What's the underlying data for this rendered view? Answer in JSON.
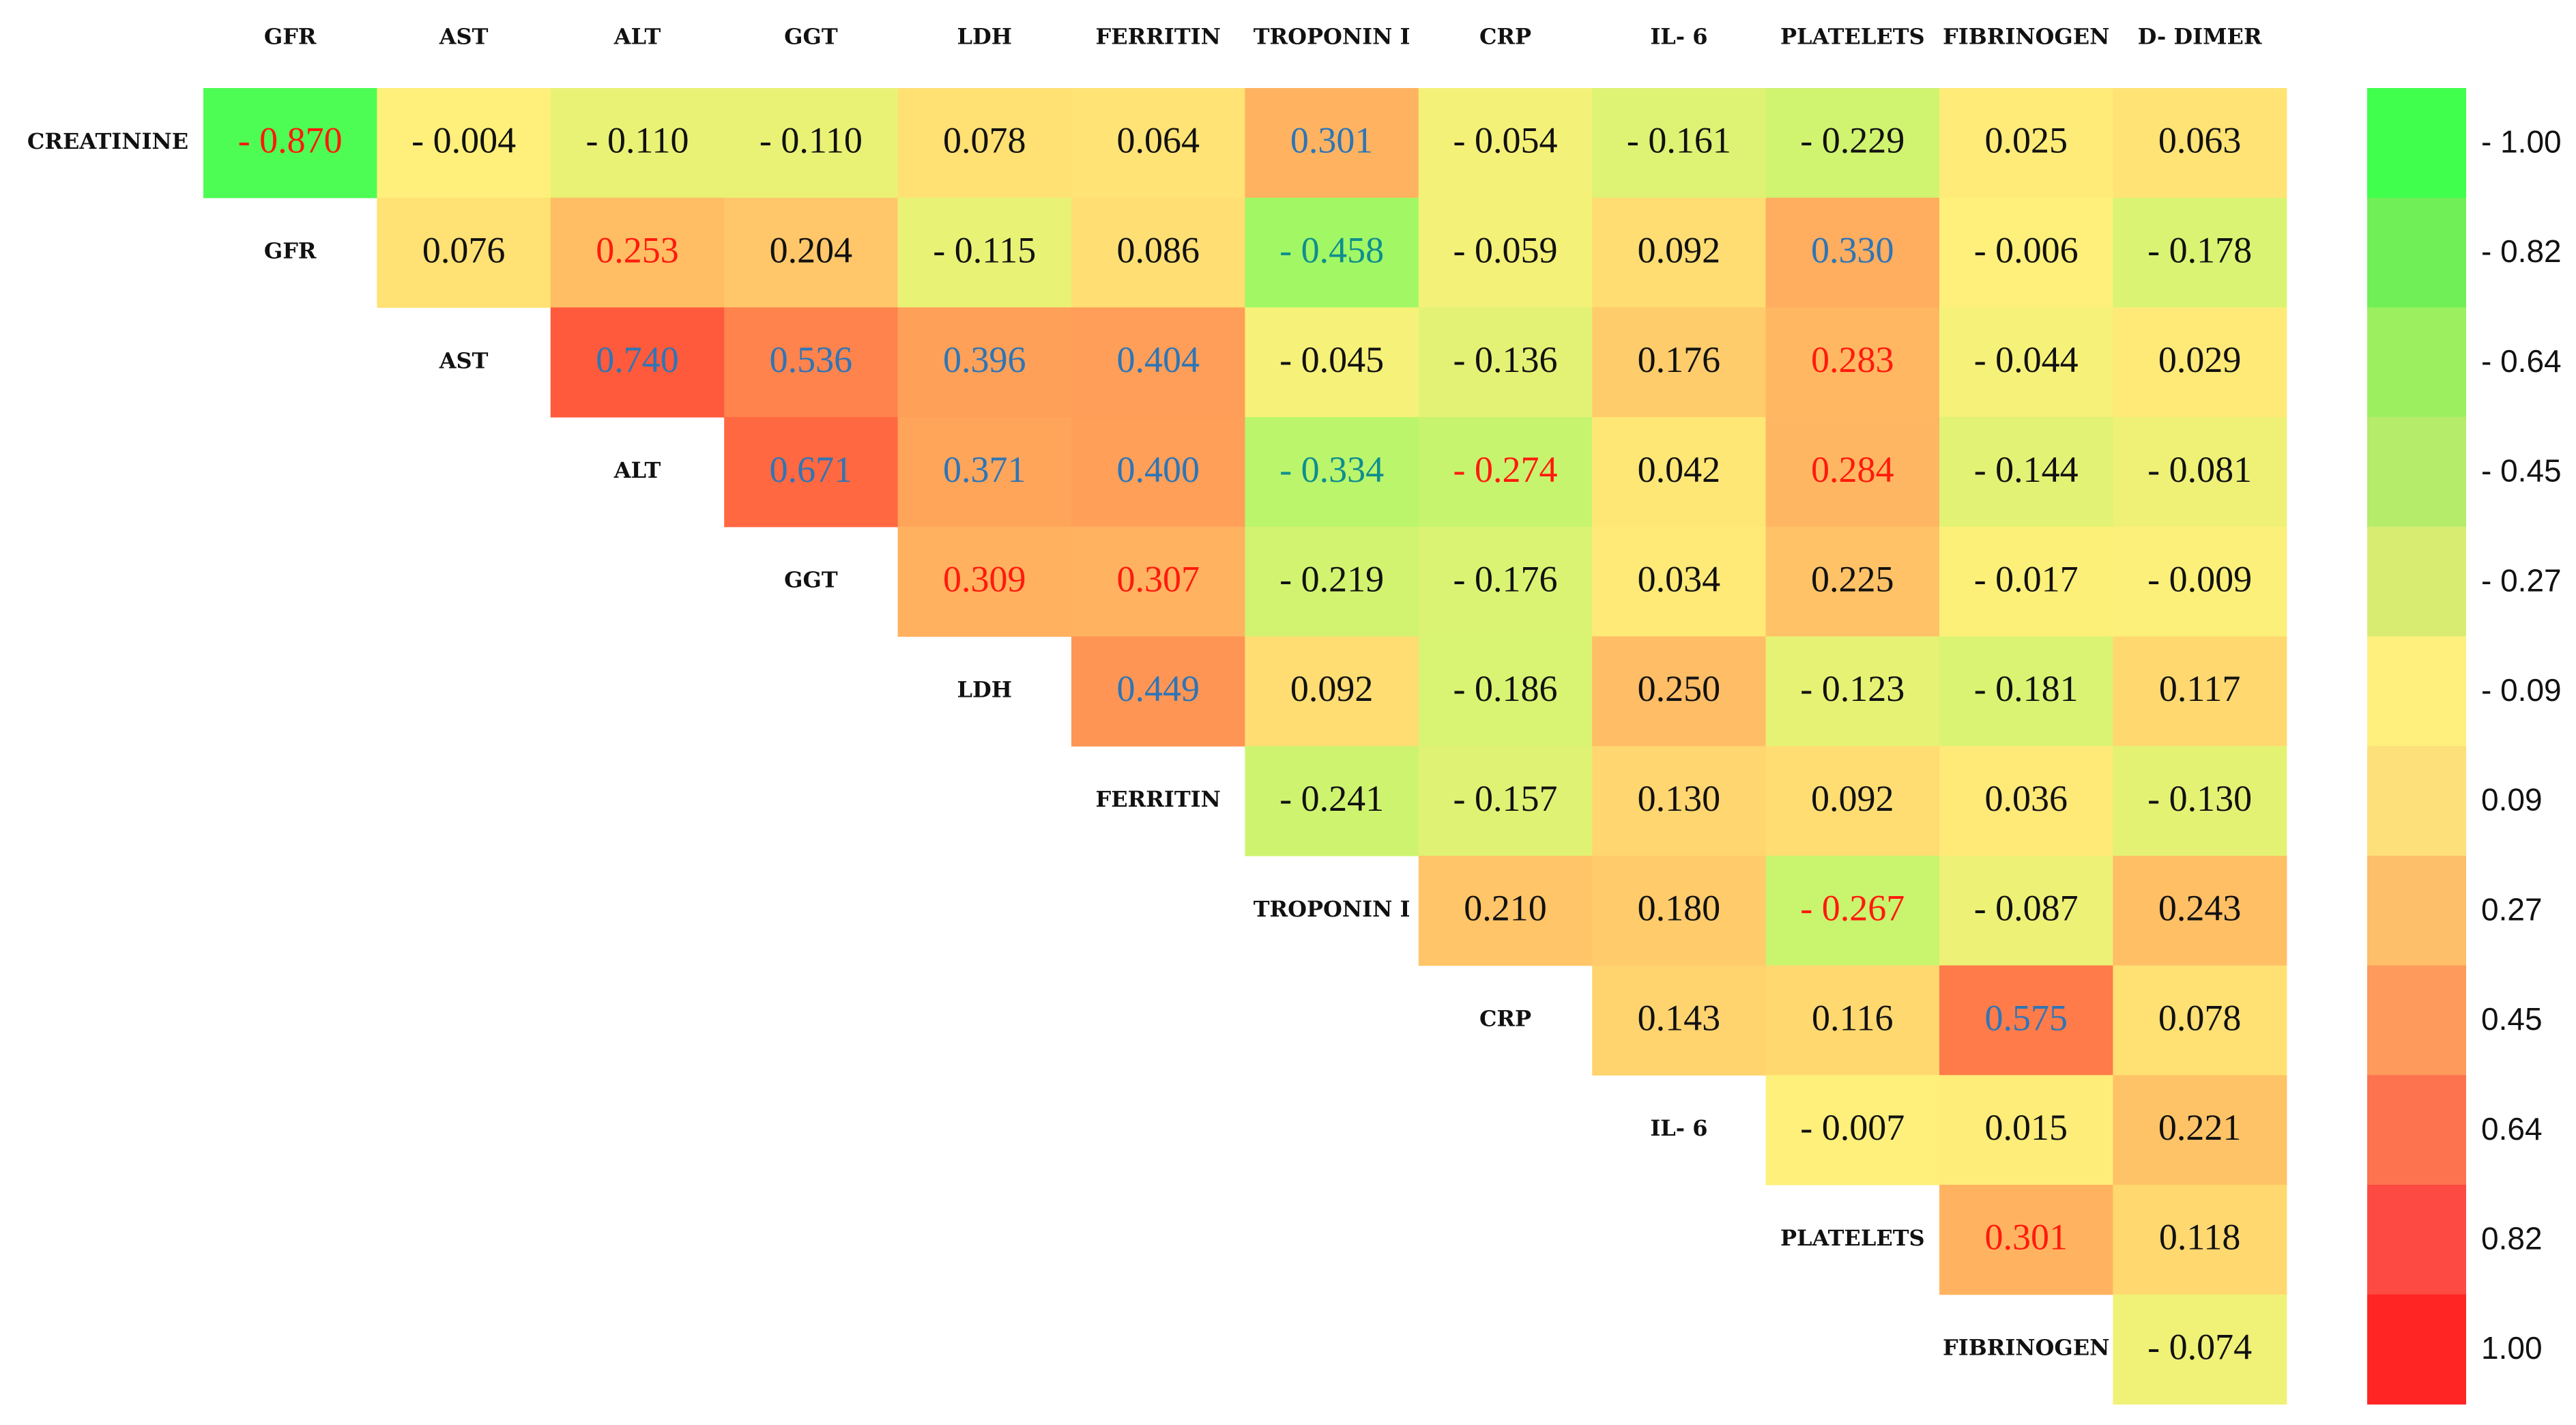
{
  "chart_data": {
    "type": "heatmap",
    "title": "",
    "layout": "upper-triangular correlation matrix",
    "columns": [
      "GFR",
      "AST",
      "ALT",
      "GGT",
      "LDH",
      "FERRITIN",
      "TROPONIN I",
      "CRP",
      "IL- 6",
      "PLATELETS",
      "FIBRINOGEN",
      "D- DIMER"
    ],
    "rows": [
      "CREATININE",
      "GFR",
      "AST",
      "ALT",
      "GGT",
      "LDH",
      "FERRITIN",
      "TROPONIN I",
      "CRP",
      "IL- 6",
      "PLATELETS",
      "FIBRINOGEN"
    ],
    "values": [
      [
        -0.87,
        -0.004,
        -0.11,
        -0.11,
        0.078,
        0.064,
        0.301,
        -0.054,
        -0.161,
        -0.229,
        0.025,
        0.063
      ],
      [
        null,
        0.076,
        0.253,
        0.204,
        -0.115,
        0.086,
        -0.458,
        -0.059,
        0.092,
        0.33,
        -0.006,
        -0.178
      ],
      [
        null,
        null,
        0.74,
        0.536,
        0.396,
        0.404,
        -0.045,
        -0.136,
        0.176,
        0.283,
        -0.044,
        0.029
      ],
      [
        null,
        null,
        null,
        0.671,
        0.371,
        0.4,
        -0.334,
        -0.274,
        0.042,
        0.284,
        -0.144,
        -0.081
      ],
      [
        null,
        null,
        null,
        null,
        0.309,
        0.307,
        -0.219,
        -0.176,
        0.034,
        0.225,
        -0.017,
        -0.009
      ],
      [
        null,
        null,
        null,
        null,
        null,
        0.449,
        0.092,
        -0.186,
        0.25,
        -0.123,
        -0.181,
        0.117
      ],
      [
        null,
        null,
        null,
        null,
        null,
        null,
        -0.241,
        -0.157,
        0.13,
        0.092,
        0.036,
        -0.13
      ],
      [
        null,
        null,
        null,
        null,
        null,
        null,
        null,
        0.21,
        0.18,
        -0.267,
        -0.087,
        0.243
      ],
      [
        null,
        null,
        null,
        null,
        null,
        null,
        null,
        null,
        0.143,
        0.116,
        0.575,
        0.078
      ],
      [
        null,
        null,
        null,
        null,
        null,
        null,
        null,
        null,
        null,
        -0.007,
        0.015,
        0.221
      ],
      [
        null,
        null,
        null,
        null,
        null,
        null,
        null,
        null,
        null,
        null,
        0.301,
        0.118
      ],
      [
        null,
        null,
        null,
        null,
        null,
        null,
        null,
        null,
        null,
        null,
        null,
        -0.074
      ]
    ],
    "labels": [
      [
        "- 0.870",
        "- 0.004",
        "- 0.110",
        "- 0.110",
        "0.078",
        "0.064",
        "0.301",
        "- 0.054",
        "- 0.161",
        "- 0.229",
        "0.025",
        "0.063"
      ],
      [
        "",
        "0.076",
        "0.253",
        "0.204",
        "- 0.115",
        "0.086",
        "- 0.458",
        "- 0.059",
        "0.092",
        "0.330",
        "- 0.006",
        "- 0.178"
      ],
      [
        "",
        "",
        "0.740",
        "0.536",
        "0.396",
        "0.404",
        "- 0.045",
        "- 0.136",
        "0.176",
        "0.283",
        "- 0.044",
        "0.029"
      ],
      [
        "",
        "",
        "",
        "0.671",
        "0.371",
        "0.400",
        "- 0.334",
        "- 0.274",
        "0.042",
        "0.284",
        "- 0.144",
        "- 0.081"
      ],
      [
        "",
        "",
        "",
        "",
        "0.309",
        "0.307",
        "- 0.219",
        "- 0.176",
        "0.034",
        "0.225",
        "- 0.017",
        "- 0.009"
      ],
      [
        "",
        "",
        "",
        "",
        "",
        "0.449",
        "0.092",
        "- 0.186",
        "0.250",
        "- 0.123",
        "- 0.181",
        "0.117"
      ],
      [
        "",
        "",
        "",
        "",
        "",
        "",
        "- 0.241",
        "- 0.157",
        "0.130",
        "0.092",
        "0.036",
        "- 0.130"
      ],
      [
        "",
        "",
        "",
        "",
        "",
        "",
        "",
        "0.210",
        "0.180",
        "- 0.267",
        "- 0.087",
        "0.243"
      ],
      [
        "",
        "",
        "",
        "",
        "",
        "",
        "",
        "",
        "0.143",
        "0.116",
        "0.575",
        "0.078"
      ],
      [
        "",
        "",
        "",
        "",
        "",
        "",
        "",
        "",
        "",
        "- 0.007",
        "0.015",
        "0.221"
      ],
      [
        "",
        "",
        "",
        "",
        "",
        "",
        "",
        "",
        "",
        "",
        "0.301",
        "0.118"
      ],
      [
        "",
        "",
        "",
        "",
        "",
        "",
        "",
        "",
        "",
        "",
        "",
        "- 0.074"
      ]
    ],
    "label_colors": [
      [
        "red",
        "black",
        "black",
        "black",
        "black",
        "black",
        "blue",
        "black",
        "black",
        "black",
        "black",
        "black"
      ],
      [
        "",
        "black",
        "red",
        "black",
        "black",
        "black",
        "teal",
        "black",
        "black",
        "blue",
        "black",
        "black"
      ],
      [
        "",
        "",
        "blue",
        "blue",
        "blue",
        "blue",
        "black",
        "black",
        "black",
        "red",
        "black",
        "black"
      ],
      [
        "",
        "",
        "",
        "blue",
        "blue",
        "blue",
        "teal",
        "red",
        "black",
        "red",
        "black",
        "black"
      ],
      [
        "",
        "",
        "",
        "",
        "red",
        "red",
        "black",
        "black",
        "black",
        "black",
        "black",
        "black"
      ],
      [
        "",
        "",
        "",
        "",
        "",
        "blue",
        "black",
        "black",
        "black",
        "black",
        "black",
        "black"
      ],
      [
        "",
        "",
        "",
        "",
        "",
        "",
        "black",
        "black",
        "black",
        "black",
        "black",
        "black"
      ],
      [
        "",
        "",
        "",
        "",
        "",
        "",
        "",
        "black",
        "black",
        "red",
        "black",
        "black"
      ],
      [
        "",
        "",
        "",
        "",
        "",
        "",
        "",
        "",
        "black",
        "black",
        "blue",
        "black"
      ],
      [
        "",
        "",
        "",
        "",
        "",
        "",
        "",
        "",
        "",
        "black",
        "black",
        "black"
      ],
      [
        "",
        "",
        "",
        "",
        "",
        "",
        "",
        "",
        "",
        "",
        "red",
        "black"
      ],
      [
        "",
        "",
        "",
        "",
        "",
        "",
        "",
        "",
        "",
        "",
        "",
        "black"
      ]
    ],
    "text_color_map": {
      "red": "#ff1a0d",
      "blue": "#2e75b6",
      "teal": "#0e8e8e",
      "black": "#111111"
    },
    "color_scale": {
      "name": "green-yellow-red",
      "domain": [
        -1.0,
        1.0
      ],
      "low_color": "#33ff4d",
      "mid_color": "#fff07a",
      "high_color": "#ff2525",
      "legend_ticks": [
        "- 1.00",
        "- 0.82",
        "- 0.64",
        "- 0.45",
        "- 0.27",
        "- 0.09",
        "0.09",
        "0.27",
        "0.45",
        "0.64",
        "0.82",
        "1.00"
      ],
      "legend_colors": [
        "#40ff4d",
        "#70f056",
        "#9cf060",
        "#b5ec6a",
        "#d8ec72",
        "#fff07e",
        "#fde07a",
        "#fdbf6a",
        "#fd9a5c",
        "#fd7350",
        "#fd4a42",
        "#ff2525"
      ],
      "legend_position": "right"
    }
  }
}
